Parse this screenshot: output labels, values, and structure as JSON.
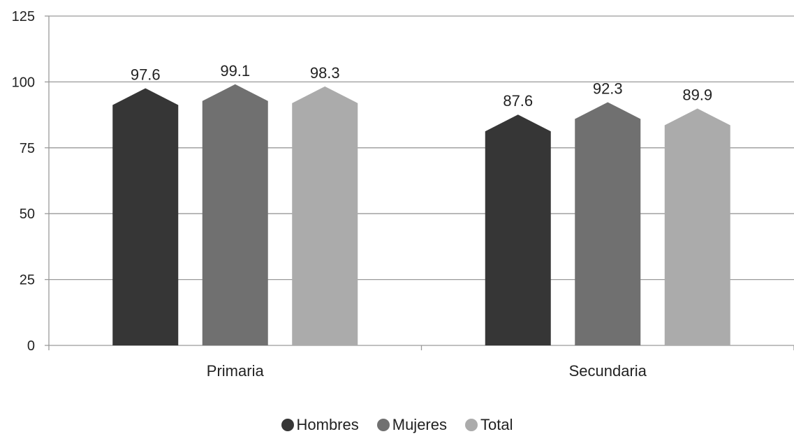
{
  "chart_data": {
    "type": "bar",
    "categories": [
      "Primaria",
      "Secundaria"
    ],
    "series": [
      {
        "name": "Hombres",
        "color": "#363636",
        "values": [
          97.6,
          87.6
        ]
      },
      {
        "name": "Mujeres",
        "color": "#707070",
        "values": [
          99.1,
          92.3
        ]
      },
      {
        "name": "Total",
        "color": "#ababab",
        "values": [
          98.3,
          89.9
        ]
      }
    ],
    "ylim": [
      0,
      125
    ],
    "yticks": [
      0,
      25,
      50,
      75,
      100,
      125
    ],
    "grid": true,
    "data_labels": true,
    "legend_position": "bottom",
    "title": "",
    "xlabel": "",
    "ylabel": ""
  }
}
